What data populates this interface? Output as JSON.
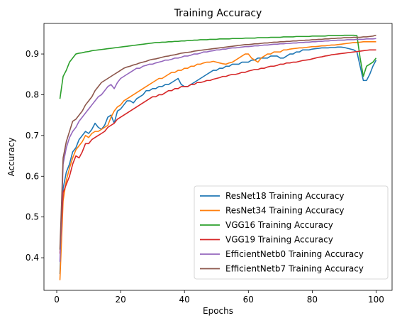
{
  "chart_data": {
    "type": "line",
    "title": "Training Accuracy",
    "xlabel": "Epochs",
    "ylabel": "Accuracy",
    "xlim": [
      -4,
      105
    ],
    "ylim": [
      0.32,
      0.975
    ],
    "xticks": [
      0,
      20,
      40,
      60,
      80,
      100
    ],
    "yticks": [
      0.4,
      0.5,
      0.6,
      0.7,
      0.8,
      0.9
    ],
    "grid": false,
    "legend_position": "lower-right",
    "x": [
      1,
      2,
      3,
      4,
      5,
      6,
      7,
      8,
      9,
      10,
      11,
      12,
      13,
      14,
      15,
      16,
      17,
      18,
      19,
      20,
      21,
      22,
      23,
      24,
      25,
      26,
      27,
      28,
      29,
      30,
      31,
      32,
      33,
      34,
      35,
      36,
      37,
      38,
      39,
      40,
      41,
      42,
      43,
      44,
      45,
      46,
      47,
      48,
      49,
      50,
      51,
      52,
      53,
      54,
      55,
      56,
      57,
      58,
      59,
      60,
      61,
      62,
      63,
      64,
      65,
      66,
      67,
      68,
      69,
      70,
      71,
      72,
      73,
      74,
      75,
      76,
      77,
      78,
      79,
      80,
      81,
      82,
      83,
      84,
      85,
      86,
      87,
      88,
      89,
      90,
      91,
      92,
      93,
      94,
      95,
      96,
      97,
      98,
      99,
      100
    ],
    "series": [
      {
        "name": "ResNet18 Training Accuracy",
        "color": "#1f77b4",
        "values": [
          0.36,
          0.57,
          0.61,
          0.63,
          0.66,
          0.67,
          0.69,
          0.7,
          0.71,
          0.705,
          0.715,
          0.73,
          0.72,
          0.715,
          0.725,
          0.745,
          0.75,
          0.73,
          0.76,
          0.765,
          0.775,
          0.785,
          0.785,
          0.78,
          0.79,
          0.795,
          0.8,
          0.81,
          0.81,
          0.815,
          0.815,
          0.82,
          0.82,
          0.825,
          0.825,
          0.83,
          0.835,
          0.84,
          0.825,
          0.82,
          0.82,
          0.825,
          0.83,
          0.835,
          0.84,
          0.845,
          0.85,
          0.855,
          0.86,
          0.86,
          0.865,
          0.865,
          0.87,
          0.87,
          0.875,
          0.875,
          0.875,
          0.88,
          0.88,
          0.88,
          0.885,
          0.885,
          0.89,
          0.89,
          0.89,
          0.89,
          0.895,
          0.895,
          0.895,
          0.89,
          0.89,
          0.895,
          0.9,
          0.9,
          0.905,
          0.905,
          0.91,
          0.91,
          0.91,
          0.912,
          0.913,
          0.914,
          0.915,
          0.915,
          0.915,
          0.916,
          0.916,
          0.917,
          0.917,
          0.916,
          0.914,
          0.912,
          0.91,
          0.905,
          0.87,
          0.835,
          0.835,
          0.85,
          0.87,
          0.885
        ]
      },
      {
        "name": "ResNet34 Training Accuracy",
        "color": "#ff7f0e",
        "values": [
          0.345,
          0.54,
          0.59,
          0.62,
          0.645,
          0.665,
          0.675,
          0.685,
          0.7,
          0.695,
          0.705,
          0.71,
          0.71,
          0.715,
          0.72,
          0.725,
          0.745,
          0.76,
          0.77,
          0.775,
          0.785,
          0.79,
          0.795,
          0.8,
          0.805,
          0.81,
          0.815,
          0.82,
          0.825,
          0.83,
          0.835,
          0.84,
          0.84,
          0.845,
          0.85,
          0.855,
          0.855,
          0.86,
          0.86,
          0.865,
          0.865,
          0.87,
          0.87,
          0.875,
          0.875,
          0.878,
          0.88,
          0.88,
          0.882,
          0.88,
          0.878,
          0.876,
          0.875,
          0.878,
          0.88,
          0.885,
          0.89,
          0.895,
          0.9,
          0.9,
          0.89,
          0.885,
          0.88,
          0.89,
          0.895,
          0.9,
          0.9,
          0.905,
          0.905,
          0.905,
          0.91,
          0.91,
          0.912,
          0.913,
          0.914,
          0.915,
          0.915,
          0.916,
          0.917,
          0.918,
          0.918,
          0.919,
          0.92,
          0.92,
          0.921,
          0.922,
          0.922,
          0.923,
          0.924,
          0.925,
          0.926,
          0.927,
          0.928,
          0.928,
          0.929,
          0.93,
          0.93,
          0.93,
          0.93,
          0.93
        ]
      },
      {
        "name": "VGG16 Training Accuracy",
        "color": "#2ca02c",
        "values": [
          0.79,
          0.845,
          0.86,
          0.88,
          0.89,
          0.9,
          0.902,
          0.903,
          0.905,
          0.906,
          0.908,
          0.909,
          0.91,
          0.911,
          0.912,
          0.913,
          0.914,
          0.915,
          0.916,
          0.917,
          0.918,
          0.919,
          0.92,
          0.921,
          0.922,
          0.923,
          0.924,
          0.925,
          0.926,
          0.927,
          0.928,
          0.928,
          0.929,
          0.929,
          0.93,
          0.93,
          0.931,
          0.931,
          0.932,
          0.932,
          0.933,
          0.933,
          0.934,
          0.934,
          0.935,
          0.935,
          0.935,
          0.936,
          0.936,
          0.936,
          0.937,
          0.937,
          0.937,
          0.937,
          0.938,
          0.938,
          0.938,
          0.938,
          0.939,
          0.939,
          0.939,
          0.939,
          0.94,
          0.94,
          0.94,
          0.94,
          0.941,
          0.941,
          0.941,
          0.941,
          0.942,
          0.942,
          0.942,
          0.942,
          0.943,
          0.943,
          0.943,
          0.943,
          0.943,
          0.944,
          0.944,
          0.944,
          0.944,
          0.944,
          0.945,
          0.945,
          0.945,
          0.945,
          0.945,
          0.946,
          0.946,
          0.946,
          0.946,
          0.945,
          0.89,
          0.845,
          0.87,
          0.875,
          0.88,
          0.89
        ]
      },
      {
        "name": "VGG19 Training Accuracy",
        "color": "#d62728",
        "values": [
          0.41,
          0.56,
          0.58,
          0.6,
          0.63,
          0.65,
          0.645,
          0.66,
          0.68,
          0.68,
          0.69,
          0.695,
          0.7,
          0.705,
          0.71,
          0.72,
          0.725,
          0.73,
          0.74,
          0.745,
          0.75,
          0.755,
          0.76,
          0.765,
          0.77,
          0.775,
          0.78,
          0.785,
          0.79,
          0.795,
          0.795,
          0.8,
          0.8,
          0.805,
          0.81,
          0.81,
          0.815,
          0.815,
          0.82,
          0.82,
          0.82,
          0.825,
          0.825,
          0.83,
          0.83,
          0.832,
          0.835,
          0.835,
          0.838,
          0.84,
          0.842,
          0.845,
          0.845,
          0.848,
          0.85,
          0.85,
          0.852,
          0.855,
          0.855,
          0.858,
          0.86,
          0.862,
          0.862,
          0.865,
          0.865,
          0.868,
          0.87,
          0.87,
          0.872,
          0.875,
          0.875,
          0.878,
          0.878,
          0.88,
          0.88,
          0.882,
          0.884,
          0.885,
          0.886,
          0.888,
          0.89,
          0.892,
          0.893,
          0.895,
          0.896,
          0.898,
          0.899,
          0.9,
          0.901,
          0.902,
          0.903,
          0.904,
          0.905,
          0.906,
          0.907,
          0.908,
          0.909,
          0.91,
          0.91,
          0.91
        ]
      },
      {
        "name": "EfficientNetb0 Training Accuracy",
        "color": "#9467bd",
        "values": [
          0.39,
          0.63,
          0.67,
          0.695,
          0.71,
          0.72,
          0.735,
          0.745,
          0.755,
          0.765,
          0.775,
          0.785,
          0.795,
          0.8,
          0.81,
          0.82,
          0.825,
          0.815,
          0.83,
          0.84,
          0.845,
          0.85,
          0.855,
          0.86,
          0.865,
          0.865,
          0.87,
          0.872,
          0.875,
          0.875,
          0.878,
          0.88,
          0.882,
          0.885,
          0.885,
          0.887,
          0.89,
          0.89,
          0.892,
          0.895,
          0.895,
          0.897,
          0.9,
          0.9,
          0.902,
          0.905,
          0.905,
          0.907,
          0.908,
          0.91,
          0.91,
          0.912,
          0.912,
          0.914,
          0.915,
          0.915,
          0.916,
          0.917,
          0.918,
          0.918,
          0.919,
          0.92,
          0.92,
          0.921,
          0.922,
          0.922,
          0.923,
          0.924,
          0.924,
          0.925,
          0.925,
          0.926,
          0.926,
          0.927,
          0.927,
          0.928,
          0.928,
          0.929,
          0.929,
          0.93,
          0.93,
          0.931,
          0.931,
          0.932,
          0.932,
          0.933,
          0.933,
          0.934,
          0.934,
          0.934,
          0.935,
          0.935,
          0.935,
          0.936,
          0.936,
          0.936,
          0.937,
          0.937,
          0.937,
          0.938
        ]
      },
      {
        "name": "EfficientNetb7 Training Accuracy",
        "color": "#8c564b",
        "values": [
          0.42,
          0.645,
          0.685,
          0.71,
          0.735,
          0.74,
          0.75,
          0.76,
          0.775,
          0.785,
          0.795,
          0.81,
          0.82,
          0.83,
          0.835,
          0.84,
          0.845,
          0.85,
          0.855,
          0.86,
          0.865,
          0.868,
          0.87,
          0.873,
          0.875,
          0.878,
          0.88,
          0.882,
          0.885,
          0.887,
          0.888,
          0.89,
          0.892,
          0.894,
          0.895,
          0.897,
          0.898,
          0.9,
          0.902,
          0.903,
          0.904,
          0.905,
          0.907,
          0.908,
          0.909,
          0.91,
          0.911,
          0.912,
          0.913,
          0.914,
          0.915,
          0.916,
          0.917,
          0.918,
          0.919,
          0.92,
          0.921,
          0.922,
          0.923,
          0.923,
          0.924,
          0.925,
          0.925,
          0.926,
          0.927,
          0.927,
          0.928,
          0.929,
          0.929,
          0.93,
          0.93,
          0.931,
          0.931,
          0.932,
          0.932,
          0.933,
          0.933,
          0.934,
          0.934,
          0.935,
          0.935,
          0.936,
          0.936,
          0.937,
          0.937,
          0.938,
          0.938,
          0.939,
          0.939,
          0.94,
          0.94,
          0.94,
          0.941,
          0.941,
          0.941,
          0.942,
          0.942,
          0.943,
          0.944,
          0.946
        ]
      }
    ]
  }
}
